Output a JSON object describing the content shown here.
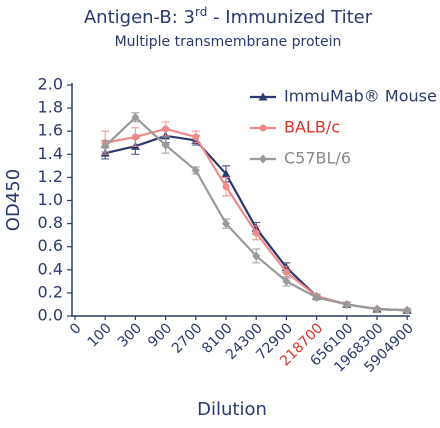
{
  "chart_data": {
    "type": "line",
    "title": [
      "Antigen-B: 3",
      "rd",
      " - Immunized Titer"
    ],
    "subtitle": "Multiple transmembrane protein",
    "x_label": "Dilution",
    "y_label": "OD450",
    "categories": [
      "0",
      "100",
      "300",
      "900",
      "2700",
      "8100",
      "24300",
      "72900",
      "218700",
      "656100",
      "1968300",
      "5904900"
    ],
    "x_label_highlight": {
      "index": 8,
      "color": "#e0362c"
    },
    "series": [
      {
        "name": "ImmuMab® Mouse",
        "color": "#2b3a6e",
        "marker": "triangle",
        "values": [
          null,
          1.41,
          1.47,
          1.56,
          1.52,
          1.23,
          0.76,
          0.42,
          0.17,
          0.1,
          0.06,
          0.05
        ],
        "errors": [
          null,
          0.05,
          0.07,
          0.06,
          0.04,
          0.07,
          0.05,
          0.04,
          0.02,
          0.02,
          0.01,
          0.01
        ]
      },
      {
        "name": "BALB/c",
        "color": "#f08a8a",
        "marker": "circle",
        "values": [
          null,
          1.5,
          1.55,
          1.62,
          1.55,
          1.12,
          0.72,
          0.38,
          0.17,
          0.1,
          0.06,
          0.05
        ],
        "errors": [
          null,
          0.1,
          0.08,
          0.06,
          0.05,
          0.08,
          0.06,
          0.05,
          0.02,
          0.02,
          0.01,
          0.01
        ]
      },
      {
        "name": "C57BL/6",
        "color": "#9a9a9a",
        "marker": "diamond",
        "values": [
          null,
          1.47,
          1.72,
          1.48,
          1.26,
          0.8,
          0.52,
          0.3,
          0.16,
          0.1,
          0.06,
          0.05
        ],
        "errors": [
          null,
          0.05,
          0.04,
          0.07,
          0.03,
          0.04,
          0.06,
          0.04,
          0.02,
          0.02,
          0.01,
          0.01
        ]
      }
    ],
    "ylim": [
      0,
      2
    ],
    "yticks": [
      {
        "value": 0,
        "label": "0.0"
      },
      0.2,
      0.4,
      0.6,
      0.8,
      {
        "value": 1,
        "label": "1.0"
      },
      1.2,
      1.4,
      1.6,
      1.8,
      {
        "value": 2,
        "label": "2.0"
      }
    ],
    "grid": false,
    "legend": "upper right"
  }
}
